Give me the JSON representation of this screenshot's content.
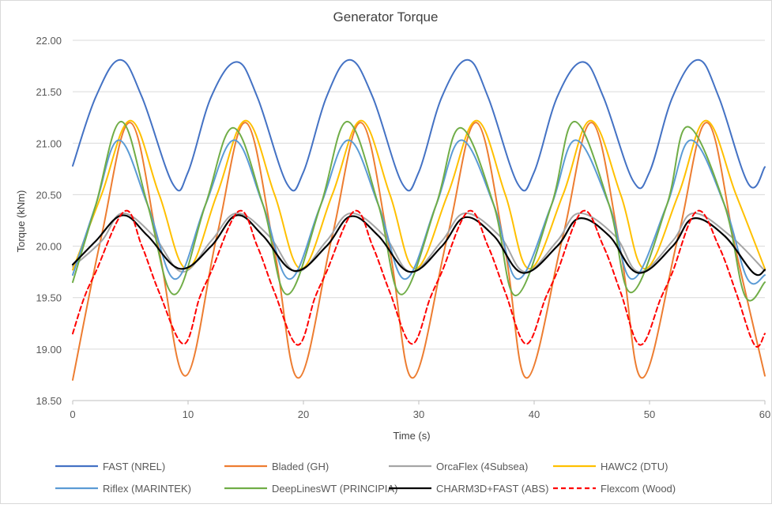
{
  "chart_data": {
    "type": "line",
    "title": "Generator Torque",
    "xlabel": "Time (s)",
    "ylabel": "Torque (kNm)",
    "xlim": [
      0,
      60
    ],
    "ylim": [
      18.5,
      22.0
    ],
    "x_ticks": [
      0,
      10,
      20,
      30,
      40,
      50,
      60
    ],
    "y_ticks": [
      "18.50",
      "19.00",
      "19.50",
      "20.00",
      "20.50",
      "21.00",
      "21.50",
      "22.00"
    ],
    "grid": "horizontal",
    "legend_position": "bottom",
    "period_s": 9.9,
    "series": [
      {
        "name": "FAST (NREL)",
        "color": "#4472C4",
        "dash": false,
        "x": [
          0,
          2,
          4.1,
          6,
          8.7,
          10,
          12,
          14.2,
          16,
          18.6,
          20,
          22,
          24,
          26,
          28.6,
          30,
          32,
          34.2,
          36,
          38.6,
          40,
          42,
          44.2,
          46,
          48.6,
          50,
          52,
          54.2,
          56,
          58.6,
          60
        ],
        "y": [
          20.78,
          21.45,
          21.81,
          21.45,
          20.6,
          20.72,
          21.45,
          21.79,
          21.45,
          20.6,
          20.72,
          21.45,
          21.81,
          21.45,
          20.6,
          20.72,
          21.45,
          21.81,
          21.45,
          20.6,
          20.72,
          21.45,
          21.79,
          21.45,
          20.63,
          20.72,
          21.45,
          21.81,
          21.45,
          20.6,
          20.77
        ]
      },
      {
        "name": "Bladed (GH)",
        "color": "#ED7D31",
        "dash": false,
        "x": [
          0,
          2.5,
          5,
          7.5,
          9.8,
          12.5,
          15,
          17.5,
          19.6,
          22.5,
          25,
          27.5,
          29.5,
          32.5,
          35,
          37.5,
          39.4,
          42.5,
          45,
          47.5,
          49.4,
          52.5,
          55,
          57.5,
          60
        ],
        "y": [
          18.7,
          20.1,
          21.2,
          19.95,
          18.74,
          20.1,
          21.2,
          19.95,
          18.72,
          20.1,
          21.2,
          19.95,
          18.72,
          20.1,
          21.2,
          19.95,
          18.72,
          20.1,
          21.2,
          19.95,
          18.72,
          20.1,
          21.2,
          19.95,
          18.74
        ]
      },
      {
        "name": "OrcaFlex (4Subsea)",
        "color": "#A5A5A5",
        "dash": false,
        "x": [
          0,
          2.5,
          4.3,
          7,
          9.5,
          12,
          14.2,
          17,
          19.4,
          22,
          24.1,
          27,
          29.3,
          32,
          34,
          37,
          39.2,
          42,
          43.9,
          47,
          49.1,
          52,
          53.8,
          57,
          60
        ],
        "y": [
          19.8,
          20.05,
          20.32,
          20.1,
          19.75,
          20.05,
          20.32,
          20.1,
          19.75,
          20.05,
          20.32,
          20.1,
          19.75,
          20.05,
          20.32,
          20.1,
          19.75,
          20.05,
          20.32,
          20.1,
          19.75,
          20.05,
          20.32,
          20.1,
          19.76
        ]
      },
      {
        "name": "HAWC2 (DTU)",
        "color": "#FFC000",
        "dash": false,
        "x": [
          0,
          2.5,
          5,
          7.5,
          9.9,
          12.5,
          15,
          17.5,
          19.8,
          22.5,
          25,
          27.5,
          29.7,
          32.5,
          35,
          37.5,
          39.6,
          42.5,
          44.9,
          47.5,
          49.6,
          52.5,
          54.9,
          57.5,
          60
        ],
        "y": [
          19.77,
          20.5,
          21.22,
          20.5,
          19.78,
          20.5,
          21.22,
          20.5,
          19.78,
          20.5,
          21.22,
          20.5,
          19.78,
          20.5,
          21.22,
          20.5,
          19.78,
          20.5,
          21.22,
          20.5,
          19.78,
          20.5,
          21.22,
          20.5,
          19.78
        ]
      },
      {
        "name": "Riflex (MARINTEK)",
        "color": "#5B9BD5",
        "dash": false,
        "x": [
          0,
          2,
          4,
          6.5,
          8.9,
          11.5,
          14,
          16.5,
          18.8,
          21.5,
          23.9,
          26.5,
          28.8,
          31.5,
          33.7,
          36.5,
          38.6,
          41.5,
          43.6,
          46.5,
          48.5,
          51.5,
          53.6,
          56.5,
          58.5,
          60
        ],
        "y": [
          19.72,
          20.4,
          21.03,
          20.4,
          19.68,
          20.4,
          21.03,
          20.4,
          19.68,
          20.4,
          21.03,
          20.4,
          19.68,
          20.4,
          21.03,
          20.4,
          19.68,
          20.4,
          21.03,
          20.4,
          19.68,
          20.4,
          21.03,
          20.4,
          19.68,
          19.72
        ]
      },
      {
        "name": "DeepLinesWT (PRINCIPIA)",
        "color": "#70AD47",
        "dash": false,
        "x": [
          0,
          2,
          4.2,
          6.5,
          8.8,
          11.5,
          13.9,
          16.5,
          18.6,
          21.5,
          23.8,
          26.5,
          28.5,
          31.5,
          33.6,
          36.5,
          38.4,
          41.5,
          43.5,
          46.5,
          48.4,
          51.5,
          53.3,
          56.5,
          58.3,
          60
        ],
        "y": [
          19.65,
          20.4,
          21.21,
          20.4,
          19.53,
          20.4,
          21.15,
          20.4,
          19.53,
          20.4,
          21.21,
          20.4,
          19.53,
          20.4,
          21.15,
          20.4,
          19.52,
          20.4,
          21.21,
          20.4,
          19.55,
          20.4,
          21.16,
          20.4,
          19.51,
          19.65
        ]
      },
      {
        "name": "CHARM3D+FAST (ABS)",
        "color": "#000000",
        "dash": false,
        "x": [
          0,
          2,
          4.3,
          6.5,
          9.3,
          12,
          14.2,
          16.5,
          19.2,
          22,
          24.1,
          26.5,
          29.2,
          32,
          34,
          36.5,
          39,
          42,
          43.9,
          46.5,
          49,
          52,
          53.8,
          56.5,
          59,
          60
        ],
        "y": [
          19.82,
          20.05,
          20.3,
          20.1,
          19.78,
          20.0,
          20.3,
          20.1,
          19.76,
          20.0,
          20.29,
          20.1,
          19.75,
          20.0,
          20.28,
          20.1,
          19.74,
          20.0,
          20.27,
          20.1,
          19.74,
          20.0,
          20.27,
          20.1,
          19.74,
          19.77
        ]
      },
      {
        "name": "Flexcom (Wood)",
        "color": "#FF0000",
        "dash": true,
        "x": [
          0,
          1,
          2,
          4.5,
          6,
          7.5,
          9.6,
          11,
          12,
          14.4,
          16,
          17.5,
          19.5,
          21,
          22,
          24.4,
          26,
          27.5,
          29.4,
          31,
          32,
          34.3,
          36,
          37.5,
          39.3,
          41,
          42,
          44.2,
          46,
          47.5,
          49.2,
          51,
          52,
          54.1,
          56,
          57.5,
          59.1,
          60
        ],
        "y": [
          19.15,
          19.5,
          19.75,
          20.34,
          20.0,
          19.55,
          19.05,
          19.5,
          19.75,
          20.34,
          20.0,
          19.55,
          19.04,
          19.5,
          19.75,
          20.34,
          20.0,
          19.55,
          19.05,
          19.5,
          19.75,
          20.34,
          20.0,
          19.55,
          19.05,
          19.5,
          19.75,
          20.34,
          20.0,
          19.55,
          19.04,
          19.5,
          19.75,
          20.34,
          20.0,
          19.55,
          19.04,
          19.15
        ]
      }
    ]
  }
}
